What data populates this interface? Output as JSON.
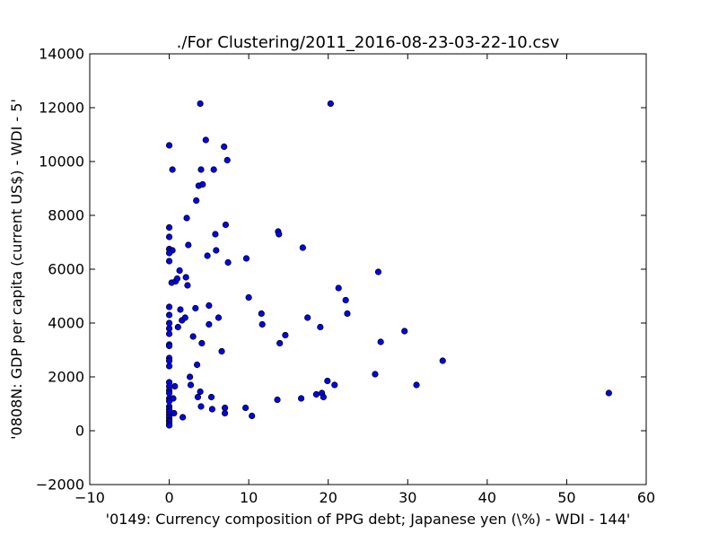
{
  "chart_data": {
    "type": "scatter",
    "title": "./For Clustering/2011_2016-08-23-03-22-10.csv",
    "xlabel": "'0149: Currency composition of PPG debt; Japanese yen  (\\%) - WDI - 144'",
    "ylabel": "'0808N: GDP per capita  (current US$) - WDI - 5'",
    "xlim": [
      -10,
      60
    ],
    "ylim": [
      -2000,
      14000
    ],
    "xticks": [
      -10,
      0,
      10,
      20,
      30,
      40,
      50,
      60
    ],
    "yticks": [
      -2000,
      0,
      2000,
      4000,
      6000,
      8000,
      10000,
      12000,
      14000
    ],
    "xtick_labels": [
      "−10",
      "0",
      "10",
      "20",
      "30",
      "40",
      "50",
      "60"
    ],
    "ytick_labels": [
      "−2000",
      "0",
      "2000",
      "4000",
      "6000",
      "8000",
      "10000",
      "12000",
      "14000"
    ],
    "grid": false,
    "marker_color": "#0000ff",
    "marker_edge_color": "#000000",
    "points": [
      [
        0.0,
        10600
      ],
      [
        0.4,
        9700
      ],
      [
        0.0,
        7550
      ],
      [
        0.0,
        7200
      ],
      [
        0.0,
        6750
      ],
      [
        0.4,
        6700
      ],
      [
        0.0,
        6600
      ],
      [
        0.0,
        6300
      ],
      [
        0.3,
        5500
      ],
      [
        0.0,
        4600
      ],
      [
        0.0,
        4300
      ],
      [
        0.0,
        4000
      ],
      [
        0.0,
        3800
      ],
      [
        0.0,
        3600
      ],
      [
        0.0,
        3200
      ],
      [
        0.0,
        3150
      ],
      [
        0.0,
        2700
      ],
      [
        0.0,
        2600
      ],
      [
        0.0,
        2400
      ],
      [
        0.0,
        1800
      ],
      [
        0.0,
        1650
      ],
      [
        0.0,
        1500
      ],
      [
        0.0,
        1400
      ],
      [
        0.0,
        1200
      ],
      [
        0.0,
        1100
      ],
      [
        0.0,
        900
      ],
      [
        0.0,
        800
      ],
      [
        0.0,
        700
      ],
      [
        0.0,
        600
      ],
      [
        0.0,
        500
      ],
      [
        0.0,
        400
      ],
      [
        0.0,
        350
      ],
      [
        0.0,
        250
      ],
      [
        0.0,
        200
      ],
      [
        0.5,
        1200
      ],
      [
        0.6,
        650
      ],
      [
        0.7,
        1650
      ],
      [
        0.8,
        5550
      ],
      [
        1.0,
        5650
      ],
      [
        1.1,
        3850
      ],
      [
        1.3,
        5950
      ],
      [
        1.4,
        4500
      ],
      [
        1.6,
        4100
      ],
      [
        1.7,
        500
      ],
      [
        2.0,
        4200
      ],
      [
        2.1,
        5700
      ],
      [
        2.2,
        7900
      ],
      [
        2.3,
        5400
      ],
      [
        2.4,
        6900
      ],
      [
        2.6,
        2000
      ],
      [
        2.7,
        1700
      ],
      [
        3.0,
        3500
      ],
      [
        3.3,
        4550
      ],
      [
        3.4,
        8550
      ],
      [
        3.5,
        2450
      ],
      [
        3.6,
        1250
      ],
      [
        3.7,
        9100
      ],
      [
        3.9,
        1450
      ],
      [
        3.9,
        12150
      ],
      [
        4.0,
        9700
      ],
      [
        4.0,
        900
      ],
      [
        4.1,
        3250
      ],
      [
        4.2,
        9150
      ],
      [
        4.6,
        10800
      ],
      [
        4.8,
        6500
      ],
      [
        5.0,
        3950
      ],
      [
        5.0,
        4650
      ],
      [
        5.3,
        1250
      ],
      [
        5.4,
        800
      ],
      [
        5.6,
        9700
      ],
      [
        5.8,
        7300
      ],
      [
        5.9,
        6700
      ],
      [
        6.2,
        4200
      ],
      [
        6.6,
        2950
      ],
      [
        6.9,
        10550
      ],
      [
        7.0,
        850
      ],
      [
        7.0,
        650
      ],
      [
        7.1,
        7650
      ],
      [
        7.3,
        10050
      ],
      [
        7.4,
        6250
      ],
      [
        9.6,
        850
      ],
      [
        9.7,
        6400
      ],
      [
        10.0,
        4950
      ],
      [
        10.4,
        550
      ],
      [
        11.6,
        4350
      ],
      [
        11.7,
        3950
      ],
      [
        13.6,
        1150
      ],
      [
        13.7,
        7400
      ],
      [
        13.8,
        7300
      ],
      [
        13.9,
        3250
      ],
      [
        14.6,
        3550
      ],
      [
        16.6,
        1200
      ],
      [
        16.8,
        6800
      ],
      [
        17.4,
        4200
      ],
      [
        18.5,
        1350
      ],
      [
        19.0,
        3850
      ],
      [
        19.2,
        1400
      ],
      [
        19.4,
        1250
      ],
      [
        19.9,
        1850
      ],
      [
        20.3,
        12150
      ],
      [
        20.8,
        1700
      ],
      [
        21.3,
        5300
      ],
      [
        22.2,
        4850
      ],
      [
        22.4,
        4350
      ],
      [
        25.9,
        2100
      ],
      [
        26.3,
        5900
      ],
      [
        26.6,
        3300
      ],
      [
        29.6,
        3700
      ],
      [
        31.1,
        1700
      ],
      [
        34.4,
        2600
      ],
      [
        55.3,
        1400
      ]
    ]
  }
}
